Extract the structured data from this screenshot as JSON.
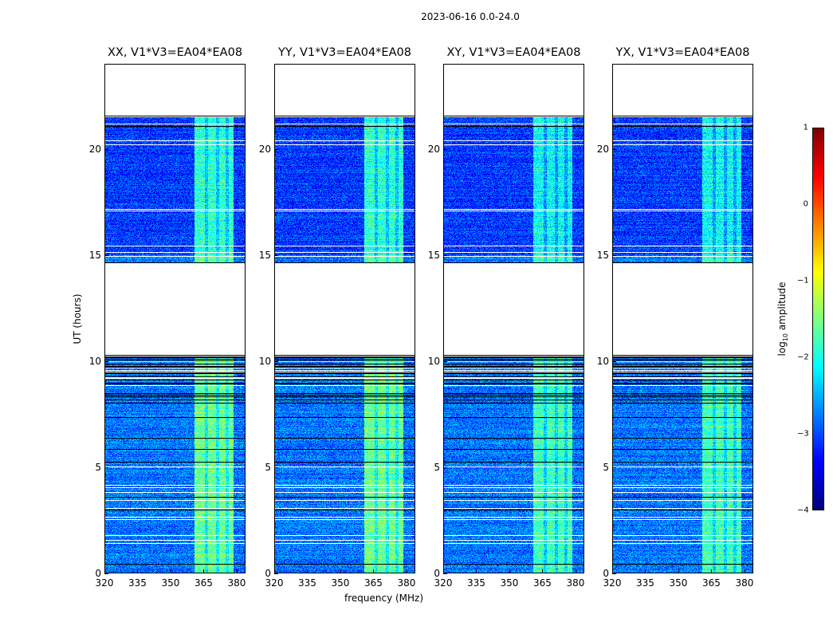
{
  "chart_data": {
    "type": "heatmap",
    "title": "2023-06-16 0.0-24.0",
    "xlabel": "frequency (MHz)",
    "ylabel": "UT (hours)",
    "xlim": [
      320,
      384
    ],
    "ylim": [
      0,
      24
    ],
    "xticks": [
      "320",
      "335",
      "350",
      "365",
      "380"
    ],
    "yticks": [
      "0",
      "5",
      "10",
      "15",
      "20"
    ],
    "panels": [
      {
        "title": "XX, V1*V3=EA04*EA08"
      },
      {
        "title": "YY, V1*V3=EA04*EA08"
      },
      {
        "title": "XY, V1*V3=EA04*EA08"
      },
      {
        "title": "YX, V1*V3=EA04*EA08"
      }
    ],
    "no_data_ut_ranges": [
      [
        10.3,
        14.6
      ],
      [
        21.6,
        24
      ]
    ],
    "heavily_flagged_ut_range": [
      8.0,
      10.3
    ],
    "bright_band_mhz": [
      361,
      379
    ],
    "background_log10_amplitude": -2.8,
    "band_log10_amplitude": -1.6,
    "colorbar": {
      "label_prefix": "log",
      "label_sub": "10",
      "label_suffix": " amplitude",
      "range": [
        -4,
        1
      ],
      "ticks": [
        "1",
        "0",
        "−1",
        "−2",
        "−3",
        "−4"
      ],
      "colormap": "jet"
    }
  }
}
